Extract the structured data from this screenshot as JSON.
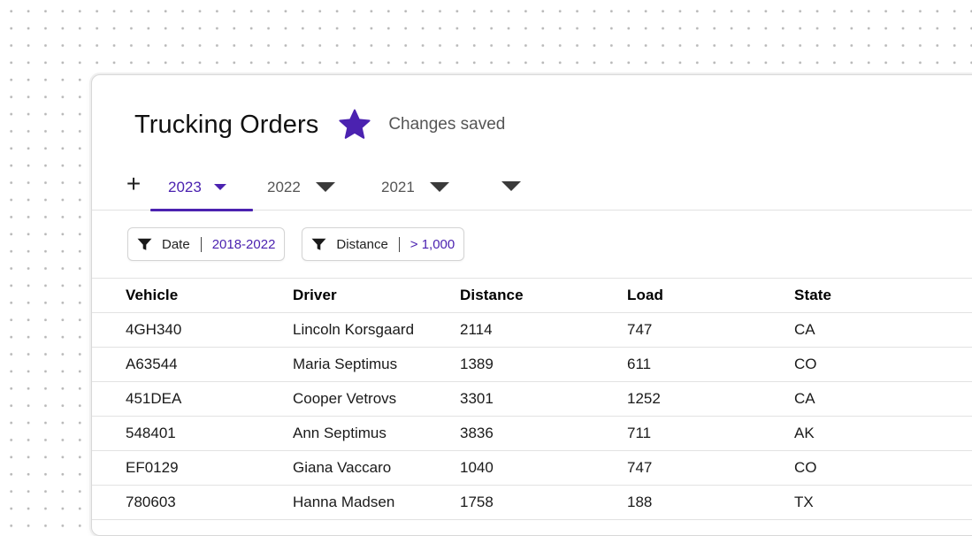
{
  "header": {
    "title": "Trucking Orders",
    "status": "Changes saved",
    "star_icon": "star-icon",
    "accent_color": "#4b22b0"
  },
  "tabs": {
    "add_label": "+",
    "items": [
      {
        "label": "2023",
        "active": true
      },
      {
        "label": "2022",
        "active": false
      },
      {
        "label": "2021",
        "active": false
      },
      {
        "label": "",
        "active": false
      }
    ]
  },
  "filters": [
    {
      "label": "Date",
      "value": "2018-2022",
      "icon": "funnel-icon"
    },
    {
      "label": "Distance",
      "value": "> 1,000",
      "icon": "funnel-icon"
    }
  ],
  "table": {
    "columns": [
      "Vehicle",
      "Driver",
      "Distance",
      "Load",
      "State"
    ],
    "rows": [
      [
        "4GH340",
        "Lincoln Korsgaard",
        "2114",
        "747",
        "CA"
      ],
      [
        "A63544",
        "Maria Septimus",
        "1389",
        "611",
        "CO"
      ],
      [
        "451DEA",
        "Cooper Vetrovs",
        "3301",
        "1252",
        "CA"
      ],
      [
        "548401",
        "Ann Septimus",
        "3836",
        "711",
        "AK"
      ],
      [
        "EF0129",
        "Giana Vaccaro",
        "1040",
        "747",
        "CO"
      ],
      [
        "780603",
        "Hanna Madsen",
        "1758",
        "188",
        "TX"
      ]
    ]
  }
}
